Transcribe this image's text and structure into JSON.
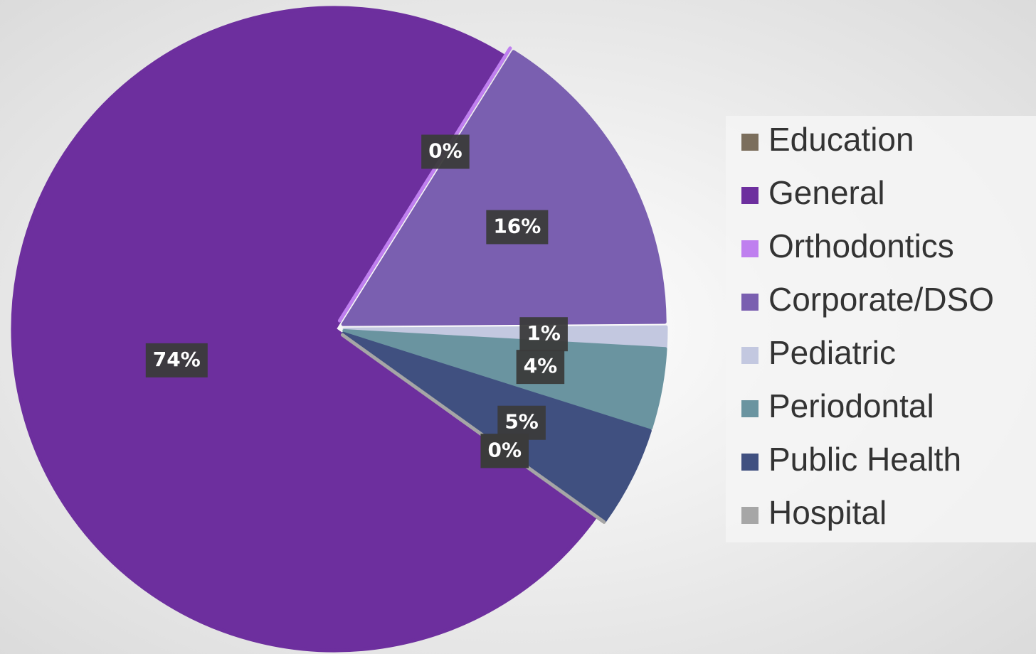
{
  "chart_data": {
    "type": "pie",
    "categories": [
      "Education",
      "General",
      "Orthodontics",
      "Corporate/DSO",
      "Pediatric",
      "Periodontal",
      "Public Health",
      "Hospital"
    ],
    "values": [
      0,
      74,
      0,
      16,
      1,
      4,
      5,
      0
    ],
    "value_labels": [
      "0%",
      "74%",
      "0%",
      "16%",
      "1%",
      "4%",
      "5%",
      "0%"
    ],
    "colors": [
      "#7b6e5c",
      "#6d2f9e",
      "#bf7fef",
      "#7a5fb0",
      "#c3c8e0",
      "#6a94a0",
      "#405080",
      "#a6a6a6"
    ],
    "legend": "right"
  }
}
